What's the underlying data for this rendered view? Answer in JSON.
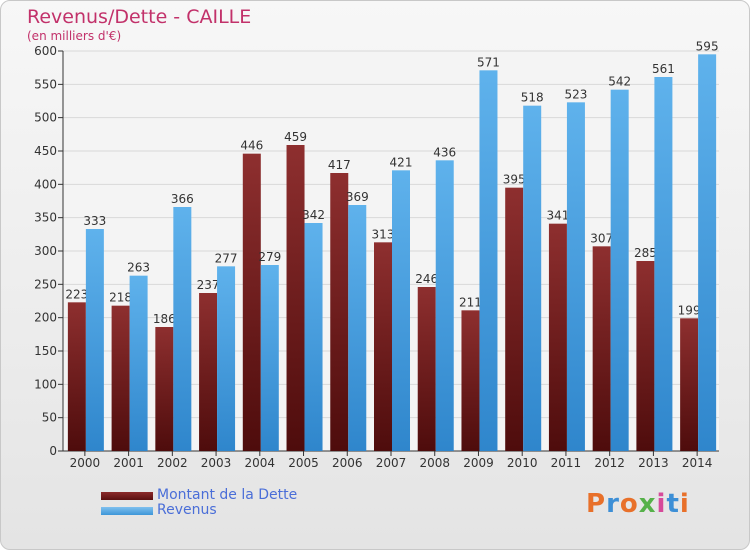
{
  "chart_data": {
    "type": "bar",
    "title": "Revenus/Dette - CAILLE",
    "subtitle": "(en milliers d'€)",
    "categories": [
      "2000",
      "2001",
      "2002",
      "2003",
      "2004",
      "2005",
      "2006",
      "2007",
      "2008",
      "2009",
      "2010",
      "2011",
      "2012",
      "2013",
      "2014"
    ],
    "series": [
      {
        "name": "Montant de la Dette",
        "color": "#7a1c1c",
        "values": [
          223,
          218,
          186,
          237,
          446,
          459,
          417,
          313,
          246,
          211,
          395,
          341,
          307,
          285,
          199
        ]
      },
      {
        "name": "Revenus",
        "color": "#4aa3e3",
        "values": [
          333,
          263,
          366,
          277,
          279,
          342,
          369,
          421,
          436,
          571,
          518,
          523,
          542,
          561,
          595
        ]
      }
    ],
    "ylim": [
      0,
      600
    ],
    "yticks": [
      0,
      50,
      100,
      150,
      200,
      250,
      300,
      350,
      400,
      450,
      500,
      550,
      600
    ],
    "xlabel": "",
    "ylabel": "",
    "grid": true,
    "legend": "bottom-left"
  },
  "legend": {
    "debt_label": "Montant de la Dette",
    "revenue_label": "Revenus"
  },
  "logo": {
    "text": "Proxiti",
    "letter_colors": [
      "#e8702a",
      "#3d8fd6",
      "#e8702a",
      "#56b14a",
      "#d64a9a",
      "#3d8fd6",
      "#e8702a"
    ]
  }
}
